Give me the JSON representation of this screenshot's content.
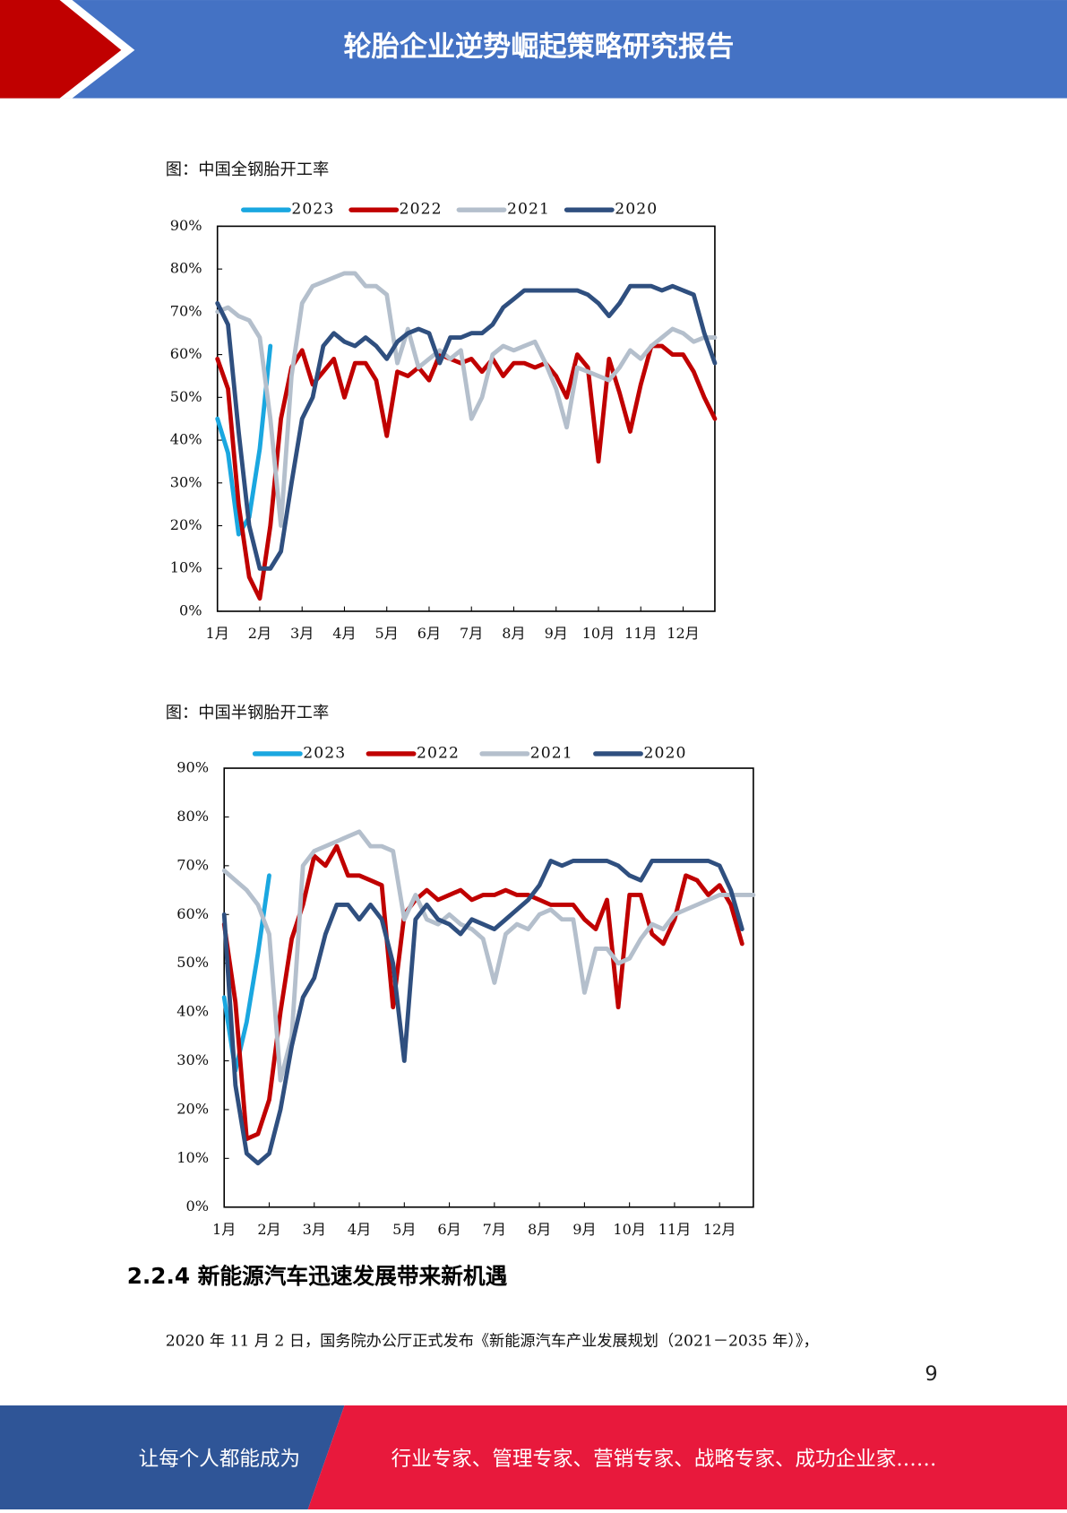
{
  "header": {
    "title": "轮胎企业逆势崛起策略研究报告"
  },
  "chart_data": [
    {
      "type": "line",
      "title": "图：中国全钢胎开工率",
      "legend": "top",
      "x": [
        1,
        1.25,
        1.5,
        1.75,
        2,
        2.25,
        2.5,
        2.75,
        3,
        3.25,
        3.5,
        3.75,
        4,
        4.25,
        4.5,
        4.75,
        5,
        5.25,
        5.5,
        5.75,
        6,
        6.25,
        6.5,
        6.75,
        7,
        7.25,
        7.5,
        7.75,
        8,
        8.25,
        8.5,
        8.75,
        9,
        9.25,
        9.5,
        9.75,
        10,
        10.25,
        10.5,
        10.75,
        11,
        11.25,
        11.5,
        11.75,
        12,
        12.25,
        12.5,
        12.75
      ],
      "xlim": [
        1,
        12.75
      ],
      "xticks": [
        {
          "value": 1,
          "label": "1月"
        },
        {
          "value": 2,
          "label": "2月"
        },
        {
          "value": 3,
          "label": "3月"
        },
        {
          "value": 4,
          "label": "4月"
        },
        {
          "value": 5,
          "label": "5月"
        },
        {
          "value": 6,
          "label": "6月"
        },
        {
          "value": 7,
          "label": "7月"
        },
        {
          "value": 8,
          "label": "8月"
        },
        {
          "value": 9,
          "label": "9月"
        },
        {
          "value": 10,
          "label": "10月"
        },
        {
          "value": 11,
          "label": "11月"
        },
        {
          "value": 12,
          "label": "12月"
        }
      ],
      "ylim": [
        0,
        90
      ],
      "yticks": [
        {
          "value": 0,
          "label": "0%"
        },
        {
          "value": 10,
          "label": "10%"
        },
        {
          "value": 20,
          "label": "20%"
        },
        {
          "value": 30,
          "label": "30%"
        },
        {
          "value": 40,
          "label": "40%"
        },
        {
          "value": 50,
          "label": "50%"
        },
        {
          "value": 60,
          "label": "60%"
        },
        {
          "value": 70,
          "label": "70%"
        },
        {
          "value": 80,
          "label": "80%"
        },
        {
          "value": 90,
          "label": "90%"
        }
      ],
      "series": [
        {
          "name": "2023",
          "color": "#1aa7e0",
          "values": [
            45,
            37,
            18,
            22,
            38,
            62,
            null,
            null,
            null,
            null,
            null,
            null,
            null,
            null,
            null,
            null,
            null,
            null,
            null,
            null,
            null,
            null,
            null,
            null,
            null,
            null,
            null,
            null,
            null,
            null,
            null,
            null,
            null,
            null,
            null,
            null,
            null,
            null,
            null,
            null,
            null,
            null,
            null,
            null,
            null,
            null,
            null,
            null
          ]
        },
        {
          "name": "2022",
          "color": "#c00000",
          "values": [
            59,
            52,
            25,
            8,
            3,
            20,
            45,
            57,
            61,
            53,
            56,
            59,
            50,
            58,
            58,
            54,
            41,
            56,
            55,
            57,
            54,
            60,
            59,
            58,
            59,
            56,
            59,
            55,
            58,
            58,
            57,
            58,
            55,
            50,
            60,
            57,
            35,
            59,
            51,
            42,
            53,
            62,
            62,
            60,
            60,
            56,
            50,
            45
          ]
        },
        {
          "name": "2021",
          "color": "#b4bfcc",
          "values": [
            70,
            71,
            69,
            68,
            64,
            45,
            20,
            55,
            72,
            76,
            77,
            78,
            79,
            79,
            76,
            76,
            74,
            58,
            66,
            57,
            59,
            61,
            59,
            61,
            45,
            50,
            60,
            62,
            61,
            62,
            63,
            58,
            52,
            43,
            57,
            56,
            55,
            54,
            57,
            61,
            59,
            62,
            64,
            66,
            65,
            63,
            64,
            64
          ]
        },
        {
          "name": "2020",
          "color": "#2f4f7f",
          "values": [
            72,
            67,
            42,
            20,
            10,
            10,
            14,
            30,
            45,
            50,
            62,
            65,
            63,
            62,
            64,
            62,
            59,
            63,
            65,
            66,
            65,
            58,
            64,
            64,
            65,
            65,
            67,
            71,
            73,
            75,
            75,
            75,
            75,
            75,
            75,
            74,
            72,
            69,
            72,
            76,
            76,
            76,
            75,
            76,
            75,
            74,
            65,
            58
          ]
        }
      ]
    },
    {
      "type": "line",
      "title": "图：中国半钢胎开工率",
      "legend": "top",
      "x": [
        1,
        1.25,
        1.5,
        1.75,
        2,
        2.25,
        2.5,
        2.75,
        3,
        3.25,
        3.5,
        3.75,
        4,
        4.25,
        4.5,
        4.75,
        5,
        5.25,
        5.5,
        5.75,
        6,
        6.25,
        6.5,
        6.75,
        7,
        7.25,
        7.5,
        7.75,
        8,
        8.25,
        8.5,
        8.75,
        9,
        9.25,
        9.5,
        9.75,
        10,
        10.25,
        10.5,
        10.75,
        11,
        11.25,
        11.5,
        11.75,
        12,
        12.25,
        12.5,
        12.75
      ],
      "xlim": [
        1,
        12.75
      ],
      "xticks": [
        {
          "value": 1,
          "label": "1月"
        },
        {
          "value": 2,
          "label": "2月"
        },
        {
          "value": 3,
          "label": "3月"
        },
        {
          "value": 4,
          "label": "4月"
        },
        {
          "value": 5,
          "label": "5月"
        },
        {
          "value": 6,
          "label": "6月"
        },
        {
          "value": 7,
          "label": "7月"
        },
        {
          "value": 8,
          "label": "8月"
        },
        {
          "value": 9,
          "label": "9月"
        },
        {
          "value": 10,
          "label": "10月"
        },
        {
          "value": 11,
          "label": "11月"
        },
        {
          "value": 12,
          "label": "12月"
        }
      ],
      "ylim": [
        0,
        90
      ],
      "yticks": [
        {
          "value": 0,
          "label": "0%"
        },
        {
          "value": 10,
          "label": "10%"
        },
        {
          "value": 20,
          "label": "20%"
        },
        {
          "value": 30,
          "label": "30%"
        },
        {
          "value": 40,
          "label": "40%"
        },
        {
          "value": 50,
          "label": "50%"
        },
        {
          "value": 60,
          "label": "60%"
        },
        {
          "value": 70,
          "label": "70%"
        },
        {
          "value": 80,
          "label": "80%"
        },
        {
          "value": 90,
          "label": "90%"
        }
      ],
      "series": [
        {
          "name": "2023",
          "color": "#1aa7e0",
          "values": [
            43,
            28,
            38,
            52,
            68,
            null,
            null,
            null,
            null,
            null,
            null,
            null,
            null,
            null,
            null,
            null,
            null,
            null,
            null,
            null,
            null,
            null,
            null,
            null,
            null,
            null,
            null,
            null,
            null,
            null,
            null,
            null,
            null,
            null,
            null,
            null,
            null,
            null,
            null,
            null,
            null,
            null,
            null,
            null,
            null,
            null,
            null,
            null
          ]
        },
        {
          "name": "2022",
          "color": "#c00000",
          "values": [
            58,
            42,
            14,
            15,
            22,
            40,
            55,
            62,
            72,
            70,
            74,
            68,
            68,
            67,
            66,
            41,
            60,
            63,
            65,
            63,
            64,
            65,
            63,
            64,
            64,
            65,
            64,
            64,
            63,
            62,
            62,
            62,
            59,
            57,
            63,
            41,
            64,
            64,
            56,
            54,
            59,
            68,
            67,
            64,
            66,
            62,
            54,
            null
          ]
        },
        {
          "name": "2021",
          "color": "#b4bfcc",
          "values": [
            69,
            67,
            65,
            62,
            56,
            26,
            35,
            70,
            73,
            74,
            75,
            76,
            77,
            74,
            74,
            73,
            59,
            64,
            59,
            58,
            60,
            58,
            57,
            55,
            46,
            56,
            58,
            57,
            60,
            61,
            59,
            59,
            44,
            53,
            53,
            50,
            51,
            55,
            58,
            57,
            60,
            61,
            62,
            63,
            64,
            64,
            64,
            64
          ]
        },
        {
          "name": "2020",
          "color": "#2f4f7f",
          "values": [
            60,
            25,
            11,
            9,
            11,
            20,
            33,
            43,
            47,
            56,
            62,
            62,
            59,
            62,
            59,
            50,
            30,
            59,
            62,
            59,
            58,
            56,
            59,
            58,
            57,
            59,
            61,
            63,
            66,
            71,
            70,
            71,
            71,
            71,
            71,
            70,
            68,
            67,
            71,
            71,
            71,
            71,
            71,
            71,
            70,
            65,
            57,
            null
          ]
        }
      ]
    }
  ],
  "section": {
    "heading": "2.2.4 新能源汽车迅速发展带来新机遇",
    "paragraph": "2020 年 11 月 2 日，国务院办公厅正式发布《新能源汽车产业发展规划（2021－2035 年）》，"
  },
  "page_number": 9,
  "footer": {
    "left": "让每个人都能成为",
    "right": "行业专家、管理专家、营销专家、战略专家、成功企业家……"
  }
}
